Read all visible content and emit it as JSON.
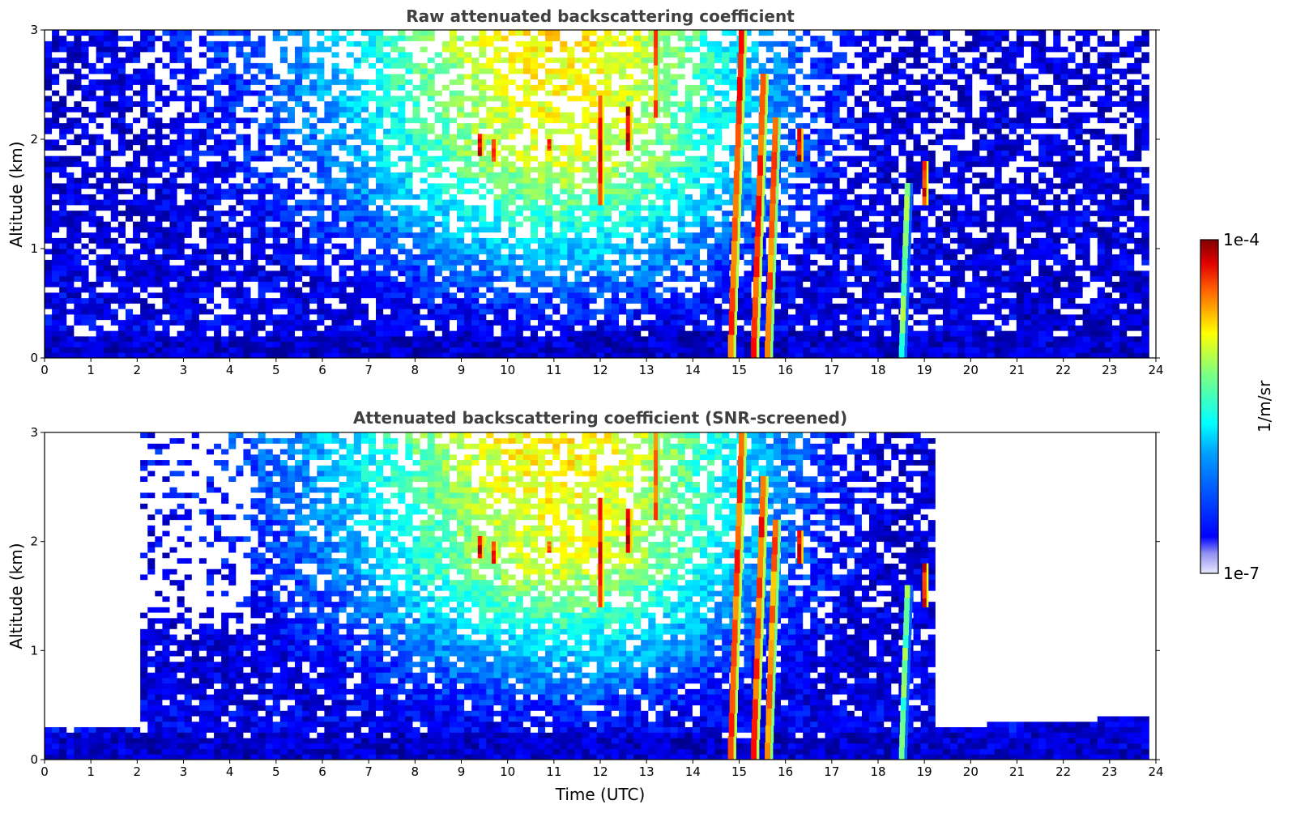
{
  "chart_data": [
    {
      "type": "heatmap",
      "title": "Raw attenuated backscattering coefficient",
      "xlabel": "",
      "ylabel": "Altitude (km)",
      "xlim": [
        0,
        24
      ],
      "ylim": [
        0,
        3
      ],
      "xticks": [
        "0",
        "1",
        "2",
        "3",
        "4",
        "5",
        "6",
        "7",
        "8",
        "9",
        "10",
        "11",
        "12",
        "13",
        "14",
        "15",
        "16",
        "17",
        "18",
        "19",
        "20",
        "21",
        "22",
        "23",
        "24"
      ],
      "yticks": [
        "0",
        "1",
        "2",
        "3"
      ],
      "screened": false,
      "features": [
        {
          "kind": "cloud-streak",
          "t": 9.4,
          "z0": 1.85,
          "z1": 2.05,
          "level": 1.0
        },
        {
          "kind": "cloud-streak",
          "t": 9.7,
          "z0": 1.8,
          "z1": 2.0,
          "level": 0.95
        },
        {
          "kind": "cloud-streak",
          "t": 10.9,
          "z0": 1.9,
          "z1": 2.0,
          "level": 0.9
        },
        {
          "kind": "cloud-streak",
          "t": 12.0,
          "z0": 1.4,
          "z1": 2.4,
          "level": 0.95
        },
        {
          "kind": "cloud-streak",
          "t": 12.6,
          "z0": 1.9,
          "z1": 2.3,
          "level": 1.0
        },
        {
          "kind": "cloud-streak",
          "t": 13.2,
          "z0": 2.2,
          "z1": 3.0,
          "level": 0.85
        },
        {
          "kind": "precip-shaft",
          "t": 14.8,
          "z0": 0.0,
          "z1": 3.0,
          "level": 0.9
        },
        {
          "kind": "precip-shaft",
          "t": 15.3,
          "z0": 0.0,
          "z1": 2.6,
          "level": 0.9
        },
        {
          "kind": "precip-shaft",
          "t": 15.6,
          "z0": 0.0,
          "z1": 2.2,
          "level": 0.85
        },
        {
          "kind": "cloud-streak",
          "t": 16.3,
          "z0": 1.8,
          "z1": 2.1,
          "level": 1.0
        },
        {
          "kind": "precip-shaft",
          "t": 18.5,
          "z0": 0.0,
          "z1": 1.6,
          "level": 0.6
        },
        {
          "kind": "cloud-streak",
          "t": 19.0,
          "z0": 1.4,
          "z1": 1.8,
          "level": 0.95
        }
      ]
    },
    {
      "type": "heatmap",
      "title": "Attenuated backscattering coefficient (SNR-screened)",
      "xlabel": "Time (UTC)",
      "ylabel": "Altitude (km)",
      "xlim": [
        0,
        24
      ],
      "ylim": [
        0,
        3
      ],
      "xticks": [
        "0",
        "1",
        "2",
        "3",
        "4",
        "5",
        "6",
        "7",
        "8",
        "9",
        "10",
        "11",
        "12",
        "13",
        "14",
        "15",
        "16",
        "17",
        "18",
        "19",
        "20",
        "21",
        "22",
        "23",
        "24"
      ],
      "yticks": [
        "0",
        "1",
        "2",
        "3"
      ],
      "screened": true,
      "features": [
        {
          "kind": "cloud-streak",
          "t": 9.4,
          "z0": 1.85,
          "z1": 2.05,
          "level": 1.0
        },
        {
          "kind": "cloud-streak",
          "t": 9.7,
          "z0": 1.8,
          "z1": 2.0,
          "level": 0.95
        },
        {
          "kind": "cloud-streak",
          "t": 10.9,
          "z0": 1.9,
          "z1": 2.0,
          "level": 0.9
        },
        {
          "kind": "cloud-streak",
          "t": 12.0,
          "z0": 1.4,
          "z1": 2.4,
          "level": 0.95
        },
        {
          "kind": "cloud-streak",
          "t": 12.6,
          "z0": 1.9,
          "z1": 2.3,
          "level": 1.0
        },
        {
          "kind": "cloud-streak",
          "t": 13.2,
          "z0": 2.2,
          "z1": 3.0,
          "level": 0.85
        },
        {
          "kind": "precip-shaft",
          "t": 14.8,
          "z0": 0.0,
          "z1": 3.0,
          "level": 0.9
        },
        {
          "kind": "precip-shaft",
          "t": 15.3,
          "z0": 0.0,
          "z1": 2.6,
          "level": 0.9
        },
        {
          "kind": "precip-shaft",
          "t": 15.6,
          "z0": 0.0,
          "z1": 2.2,
          "level": 0.85
        },
        {
          "kind": "cloud-streak",
          "t": 16.3,
          "z0": 1.8,
          "z1": 2.1,
          "level": 1.0
        },
        {
          "kind": "precip-shaft",
          "t": 18.5,
          "z0": 0.0,
          "z1": 1.6,
          "level": 0.6
        },
        {
          "kind": "cloud-streak",
          "t": 19.0,
          "z0": 1.4,
          "z1": 1.8,
          "level": 0.95
        }
      ]
    }
  ],
  "colorbar": {
    "label": "1/m/sr",
    "min_label": "1e-7",
    "max_label": "1e-4",
    "min": 1e-07,
    "max": 0.0001,
    "scale": "log",
    "colormap": "jet"
  },
  "colors": {
    "title": "#404040",
    "background": "#ffffff",
    "jet_low": "#00008f",
    "jet_high": "#800000"
  }
}
